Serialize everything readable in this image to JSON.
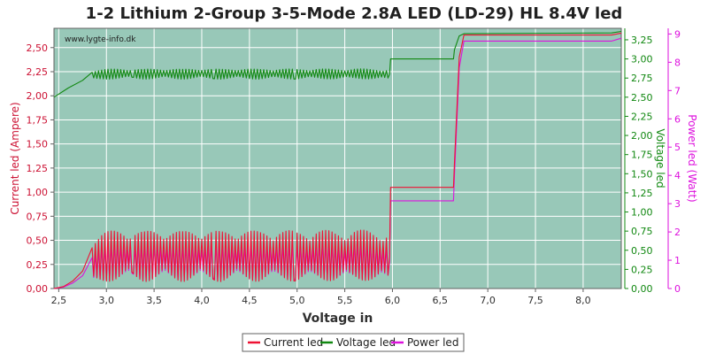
{
  "chart_data": {
    "type": "line",
    "title": "1-2 Lithium 2-Group 3-5-Mode 2.8A LED (LD-29) HL 8.4V led",
    "watermark": "www.lygte-info.dk",
    "xlabel": "Voltage in",
    "ylabel_left": "Current led (Ampere)",
    "ylabel_right1": "Voltage led",
    "ylabel_right2": "Power led (Watt)",
    "xlim": [
      2.45,
      8.4
    ],
    "ylim_left": [
      0,
      2.7
    ],
    "ylim_right1": [
      0,
      3.4
    ],
    "ylim_right2": [
      0,
      9.2
    ],
    "x_ticks": [
      "2,5",
      "3,0",
      "3,5",
      "4,0",
      "4,5",
      "5,0",
      "5,5",
      "6,0",
      "6,5",
      "7,0",
      "7,5",
      "8,0"
    ],
    "x_tick_values": [
      2.5,
      3.0,
      3.5,
      4.0,
      4.5,
      5.0,
      5.5,
      6.0,
      6.5,
      7.0,
      7.5,
      8.0
    ],
    "y_left_ticks": [
      "0,00",
      "0,25",
      "0,50",
      "0,75",
      "1,00",
      "1,25",
      "1,50",
      "1,75",
      "2,00",
      "2,25",
      "2,50"
    ],
    "y_left_tick_values": [
      0,
      0.25,
      0.5,
      0.75,
      1.0,
      1.25,
      1.5,
      1.75,
      2.0,
      2.25,
      2.5
    ],
    "y_right1_ticks": [
      "0,00",
      "0,25",
      "0,50",
      "0,75",
      "1,00",
      "1,25",
      "1,50",
      "1,75",
      "2,00",
      "2,25",
      "2,50",
      "2,75",
      "3,00",
      "3,25"
    ],
    "y_right1_tick_values": [
      0,
      0.25,
      0.5,
      0.75,
      1.0,
      1.25,
      1.5,
      1.75,
      2.0,
      2.25,
      2.5,
      2.75,
      3.0,
      3.25
    ],
    "y_right2_ticks": [
      "0",
      "1",
      "2",
      "3",
      "4",
      "5",
      "6",
      "7",
      "8",
      "9"
    ],
    "y_right2_tick_values": [
      0,
      1,
      2,
      3,
      4,
      5,
      6,
      7,
      8,
      9
    ],
    "grid": true,
    "legend_position": "bottom",
    "series": [
      {
        "name": "Current led",
        "color": "#ee1133",
        "axis": "left",
        "x": [
          2.45,
          2.55,
          2.65,
          2.75,
          2.85,
          2.95,
          3.0,
          3.2,
          3.4,
          3.6,
          3.8,
          4.0,
          4.2,
          4.4,
          4.6,
          4.8,
          5.0,
          5.2,
          5.4,
          5.6,
          5.8,
          5.97,
          5.98,
          6.64,
          6.65,
          6.7,
          6.75,
          8.3,
          8.4
        ],
        "y": [
          0.0,
          0.02,
          0.08,
          0.18,
          0.28,
          0.32,
          0.33,
          0.36,
          0.33,
          0.36,
          0.33,
          0.36,
          0.33,
          0.36,
          0.33,
          0.36,
          0.33,
          0.36,
          0.33,
          0.36,
          0.33,
          0.34,
          1.05,
          1.05,
          1.3,
          2.4,
          2.63,
          2.63,
          2.65
        ],
        "oscillation": {
          "from": 2.85,
          "to": 5.97,
          "amplitude": 0.26,
          "period": 0.034
        }
      },
      {
        "name": "Voltage led",
        "color": "#118811",
        "axis": "right1",
        "x": [
          2.45,
          2.6,
          2.75,
          2.85,
          3.0,
          3.2,
          3.4,
          3.6,
          3.8,
          4.0,
          4.2,
          4.4,
          4.6,
          4.8,
          5.0,
          5.2,
          5.4,
          5.6,
          5.8,
          5.97,
          5.98,
          6.64,
          6.65,
          6.7,
          6.75,
          8.3,
          8.4
        ],
        "y": [
          2.5,
          2.62,
          2.72,
          2.79,
          2.8,
          2.81,
          2.8,
          2.81,
          2.8,
          2.81,
          2.8,
          2.81,
          2.8,
          2.81,
          2.8,
          2.81,
          2.8,
          2.81,
          2.8,
          2.8,
          3.0,
          3.0,
          3.12,
          3.3,
          3.33,
          3.34,
          3.36
        ],
        "oscillation": {
          "from": 2.85,
          "to": 5.97,
          "amplitude": 0.065,
          "period": 0.034
        }
      },
      {
        "name": "Power led",
        "color": "#dd11dd",
        "axis": "right2",
        "x": [
          2.45,
          2.55,
          2.65,
          2.75,
          2.85,
          2.95,
          3.0,
          3.2,
          3.4,
          3.6,
          3.8,
          4.0,
          4.2,
          4.4,
          4.6,
          4.8,
          5.0,
          5.2,
          5.4,
          5.6,
          5.8,
          5.97,
          5.98,
          6.64,
          6.65,
          6.7,
          6.75,
          8.3,
          8.4
        ],
        "y": [
          0.0,
          0.05,
          0.2,
          0.45,
          0.75,
          0.9,
          0.92,
          1.0,
          0.92,
          1.0,
          0.92,
          1.0,
          0.92,
          1.0,
          0.92,
          1.0,
          0.92,
          1.0,
          0.92,
          1.0,
          0.92,
          0.95,
          3.1,
          3.1,
          4.0,
          7.8,
          8.75,
          8.75,
          8.85
        ],
        "oscillation": {
          "from": 2.85,
          "to": 5.97,
          "amplitude": 0.62,
          "period": 0.034
        }
      }
    ]
  }
}
